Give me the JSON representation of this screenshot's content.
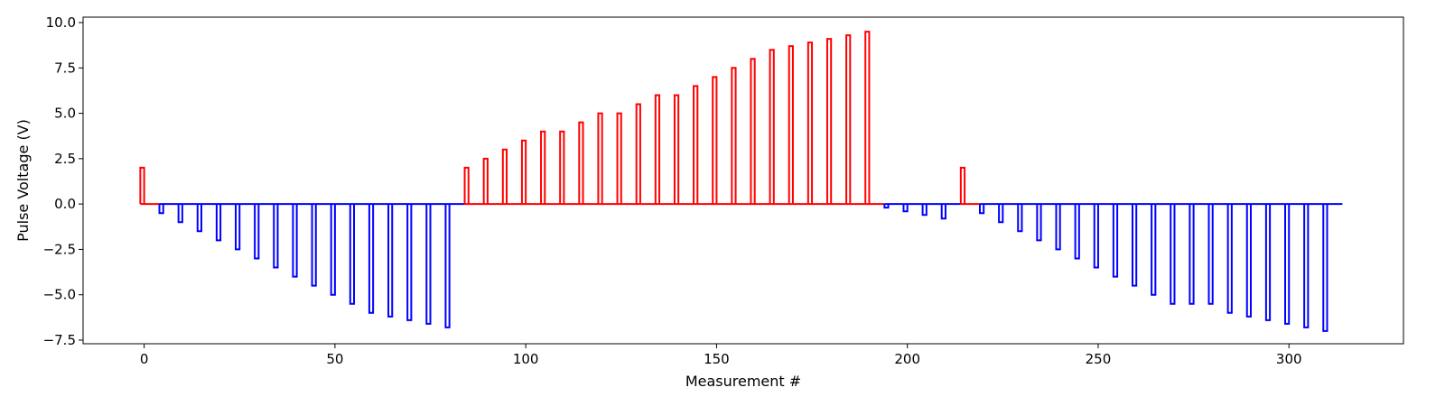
{
  "chart_data": {
    "type": "line",
    "title": "",
    "xlabel": "Measurement #",
    "ylabel": "Pulse Voltage (V)",
    "xlim": [
      -16,
      330
    ],
    "ylim": [
      -7.7,
      10.3
    ],
    "xticks": [
      0,
      50,
      100,
      150,
      200,
      250,
      300
    ],
    "yticks": [
      -7.5,
      -5.0,
      -2.5,
      0.0,
      2.5,
      5.0,
      7.5,
      10.0
    ],
    "ytick_labels": [
      "−7.5",
      "−5.0",
      "−2.5",
      "0.0",
      "2.5",
      "5.0",
      "7.5",
      "10.0"
    ],
    "grid": false,
    "colors": {
      "positive": "#ff0000",
      "negative": "#0000ff"
    },
    "series": [
      {
        "color": "#ff0000",
        "segment_start": -1,
        "segment_end": 4,
        "pulses": [
          {
            "x": -0.5,
            "v": 2.0
          }
        ]
      },
      {
        "color": "#0000ff",
        "segment_start": 4,
        "segment_end": 84,
        "pulses": [
          {
            "x": 4.5,
            "v": -0.5
          },
          {
            "x": 9.5,
            "v": -1.0
          },
          {
            "x": 14.5,
            "v": -1.5
          },
          {
            "x": 19.5,
            "v": -2.0
          },
          {
            "x": 24.5,
            "v": -2.5
          },
          {
            "x": 29.5,
            "v": -3.0
          },
          {
            "x": 34.5,
            "v": -3.5
          },
          {
            "x": 39.5,
            "v": -4.0
          },
          {
            "x": 44.5,
            "v": -4.5
          },
          {
            "x": 49.5,
            "v": -5.0
          },
          {
            "x": 54.5,
            "v": -5.5
          },
          {
            "x": 59.5,
            "v": -6.0
          },
          {
            "x": 64.5,
            "v": -6.2
          },
          {
            "x": 69.5,
            "v": -6.4
          },
          {
            "x": 74.5,
            "v": -6.6
          },
          {
            "x": 79.5,
            "v": -6.8
          }
        ]
      },
      {
        "color": "#ff0000",
        "segment_start": 84,
        "segment_end": 194,
        "pulses": [
          {
            "x": 84.5,
            "v": 2.0
          },
          {
            "x": 89.5,
            "v": 2.5
          },
          {
            "x": 94.5,
            "v": 3.0
          },
          {
            "x": 99.5,
            "v": 3.5
          },
          {
            "x": 104.5,
            "v": 4.0
          },
          {
            "x": 109.5,
            "v": 4.0
          },
          {
            "x": 114.5,
            "v": 4.5
          },
          {
            "x": 119.5,
            "v": 5.0
          },
          {
            "x": 124.5,
            "v": 5.0
          },
          {
            "x": 129.5,
            "v": 5.5
          },
          {
            "x": 134.5,
            "v": 6.0
          },
          {
            "x": 139.5,
            "v": 6.0
          },
          {
            "x": 144.5,
            "v": 6.5
          },
          {
            "x": 149.5,
            "v": 7.0
          },
          {
            "x": 154.5,
            "v": 7.5
          },
          {
            "x": 159.5,
            "v": 8.0
          },
          {
            "x": 164.5,
            "v": 8.5
          },
          {
            "x": 169.5,
            "v": 8.7
          },
          {
            "x": 174.5,
            "v": 8.9
          },
          {
            "x": 179.5,
            "v": 9.1
          },
          {
            "x": 184.5,
            "v": 9.3
          },
          {
            "x": 189.5,
            "v": 9.5
          }
        ]
      },
      {
        "color": "#0000ff",
        "segment_start": 194,
        "segment_end": 214,
        "pulses": [
          {
            "x": 194.5,
            "v": -0.2
          },
          {
            "x": 199.5,
            "v": -0.4
          },
          {
            "x": 204.5,
            "v": -0.6
          },
          {
            "x": 209.5,
            "v": -0.8
          }
        ]
      },
      {
        "color": "#ff0000",
        "segment_start": 214,
        "segment_end": 219,
        "pulses": [
          {
            "x": 214.5,
            "v": 2.0
          }
        ]
      },
      {
        "color": "#0000ff",
        "segment_start": 219,
        "segment_end": 314,
        "pulses": [
          {
            "x": 219.5,
            "v": -0.5
          },
          {
            "x": 224.5,
            "v": -1.0
          },
          {
            "x": 229.5,
            "v": -1.5
          },
          {
            "x": 234.5,
            "v": -2.0
          },
          {
            "x": 239.5,
            "v": -2.5
          },
          {
            "x": 244.5,
            "v": -3.0
          },
          {
            "x": 249.5,
            "v": -3.5
          },
          {
            "x": 254.5,
            "v": -4.0
          },
          {
            "x": 259.5,
            "v": -4.5
          },
          {
            "x": 264.5,
            "v": -5.0
          },
          {
            "x": 269.5,
            "v": -5.5
          },
          {
            "x": 274.5,
            "v": -5.5
          },
          {
            "x": 279.5,
            "v": -5.5
          },
          {
            "x": 284.5,
            "v": -6.0
          },
          {
            "x": 289.5,
            "v": -6.2
          },
          {
            "x": 294.5,
            "v": -6.4
          },
          {
            "x": 299.5,
            "v": -6.6
          },
          {
            "x": 304.5,
            "v": -6.8
          },
          {
            "x": 309.5,
            "v": -7.0
          }
        ]
      }
    ]
  }
}
